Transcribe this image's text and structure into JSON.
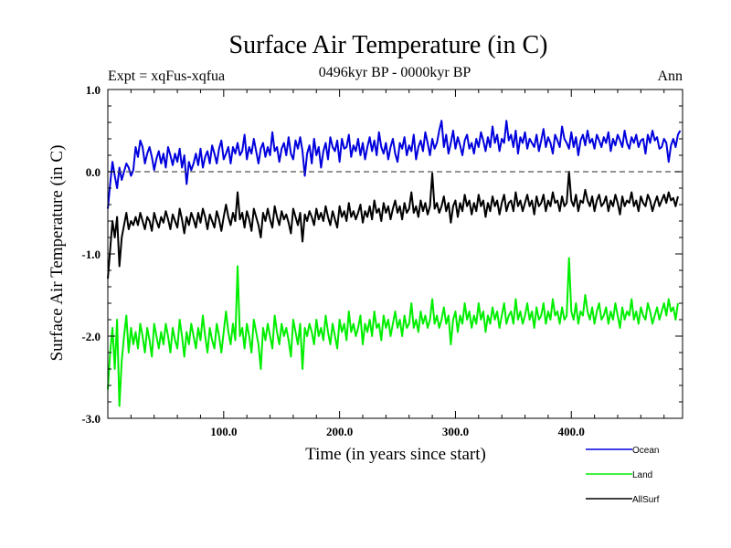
{
  "chart_data": {
    "type": "line",
    "title": "Surface Air Temperature (in C)",
    "subtitle": "0496kyr BP - 0000kyr BP",
    "experiment_label": "Expt = xqFus-xqfua",
    "season_label": "Ann",
    "xlabel": "Time (in years since start)",
    "ylabel": "Surface Air Temperature (in C)",
    "xlim": [
      0,
      496
    ],
    "ylim": [
      -3.0,
      1.0
    ],
    "x_ticks": [
      100,
      200,
      300,
      400
    ],
    "x_tick_labels": [
      "100.0",
      "200.0",
      "300.0",
      "400.0"
    ],
    "y_ticks": [
      1.0,
      0.0,
      -1.0,
      -2.0,
      -3.0
    ],
    "y_tick_labels": [
      "1.0",
      "0.0",
      "-1.0",
      "-2.0",
      "-3.0"
    ],
    "reference_line": 0.0,
    "x_step": 2,
    "series": [
      {
        "name": "Ocean",
        "color": "#0000dd",
        "values": [
          -0.45,
          -0.15,
          0.12,
          -0.05,
          -0.2,
          0.05,
          -0.1,
          0.0,
          0.1,
          0.05,
          -0.05,
          0.02,
          0.3,
          0.18,
          0.38,
          0.3,
          0.1,
          0.22,
          0.3,
          0.18,
          0.02,
          0.16,
          0.25,
          0.1,
          0.22,
          0.05,
          0.3,
          0.2,
          0.08,
          0.22,
          0.12,
          0.28,
          0.05,
          0.2,
          -0.15,
          0.12,
          0.02,
          0.1,
          0.22,
          0.08,
          0.28,
          0.05,
          0.18,
          0.25,
          0.1,
          0.32,
          0.22,
          0.1,
          0.28,
          0.38,
          0.15,
          0.22,
          0.3,
          0.1,
          0.3,
          0.22,
          0.35,
          0.2,
          0.25,
          0.45,
          0.15,
          0.3,
          0.22,
          0.4,
          0.25,
          0.1,
          0.28,
          0.35,
          0.18,
          0.3,
          0.2,
          0.48,
          0.25,
          0.3,
          0.12,
          0.28,
          0.35,
          0.2,
          0.42,
          0.22,
          0.15,
          0.38,
          0.28,
          0.42,
          0.25,
          -0.05,
          0.22,
          0.32,
          0.1,
          0.4,
          0.2,
          0.3,
          0.05,
          0.25,
          0.35,
          0.15,
          0.42,
          0.3,
          0.25,
          0.38,
          0.12,
          0.4,
          0.28,
          0.3,
          0.45,
          0.18,
          0.32,
          0.25,
          0.4,
          0.2,
          0.35,
          0.15,
          0.3,
          0.42,
          0.25,
          0.38,
          0.2,
          0.48,
          0.3,
          0.22,
          0.35,
          0.15,
          0.3,
          0.4,
          0.22,
          0.12,
          0.35,
          0.28,
          0.42,
          0.2,
          0.32,
          0.25,
          0.45,
          0.15,
          0.3,
          0.38,
          0.25,
          0.48,
          0.35,
          0.2,
          0.4,
          0.28,
          0.35,
          0.5,
          0.62,
          0.3,
          0.45,
          0.22,
          0.35,
          0.5,
          0.28,
          0.42,
          0.32,
          0.2,
          0.38,
          0.45,
          0.28,
          0.35,
          0.22,
          0.4,
          0.3,
          0.48,
          0.38,
          0.25,
          0.42,
          0.3,
          0.55,
          0.35,
          0.45,
          0.25,
          0.4,
          0.35,
          0.62,
          0.38,
          0.45,
          0.3,
          0.5,
          0.22,
          0.42,
          0.35,
          0.48,
          0.28,
          0.4,
          0.35,
          0.3,
          0.45,
          0.25,
          0.38,
          0.52,
          0.3,
          0.42,
          0.35,
          0.22,
          0.45,
          0.38,
          0.3,
          0.55,
          0.4,
          0.35,
          0.28,
          0.48,
          0.3,
          0.42,
          0.2,
          0.38,
          0.45,
          0.32,
          0.5,
          0.35,
          0.4,
          0.28,
          0.45,
          0.38,
          0.3,
          0.42,
          0.35,
          0.48,
          0.25,
          0.4,
          0.32,
          0.45,
          0.38,
          0.3,
          0.5,
          0.35,
          0.28,
          0.42,
          0.35,
          0.45,
          0.3,
          0.38,
          0.4,
          0.22,
          0.45,
          0.35,
          0.5,
          0.38,
          0.42,
          0.28,
          0.3,
          0.4,
          0.35,
          0.12,
          0.32,
          0.4,
          0.3,
          0.45,
          0.5
        ]
      },
      {
        "name": "Land",
        "color": "#00ee00",
        "values": [
          -2.65,
          -2.2,
          -1.9,
          -2.4,
          -1.8,
          -2.85,
          -2.3,
          -2.0,
          -1.75,
          -2.2,
          -1.9,
          -2.1,
          -1.95,
          -2.15,
          -1.85,
          -2.0,
          -2.2,
          -1.9,
          -2.05,
          -2.25,
          -1.85,
          -2.0,
          -2.15,
          -1.95,
          -2.1,
          -1.85,
          -2.0,
          -2.2,
          -1.9,
          -2.05,
          -2.15,
          -1.8,
          -2.0,
          -2.25,
          -1.95,
          -2.1,
          -1.85,
          -2.0,
          -2.15,
          -1.9,
          -2.05,
          -1.75,
          -2.0,
          -2.2,
          -1.9,
          -2.05,
          -2.15,
          -1.85,
          -2.0,
          -2.2,
          -1.95,
          -1.7,
          -1.95,
          -2.1,
          -1.85,
          -2.05,
          -1.15,
          -2.0,
          -1.9,
          -2.15,
          -1.85,
          -2.0,
          -2.2,
          -1.8,
          -1.95,
          -2.1,
          -2.4,
          -1.9,
          -2.05,
          -1.85,
          -2.0,
          -2.15,
          -1.75,
          -1.95,
          -2.1,
          -1.85,
          -2.0,
          -1.9,
          -2.05,
          -2.25,
          -1.8,
          -1.95,
          -2.1,
          -1.85,
          -2.4,
          -1.9,
          -2.0,
          -1.85,
          -1.95,
          -2.1,
          -1.8,
          -2.0,
          -1.9,
          -2.05,
          -1.75,
          -1.95,
          -2.1,
          -1.85,
          -2.0,
          -2.15,
          -1.8,
          -1.95,
          -1.85,
          -2.05,
          -1.7,
          -1.95,
          -1.85,
          -2.0,
          -1.9,
          -1.75,
          -2.1,
          -1.85,
          -1.95,
          -1.8,
          -2.0,
          -1.7,
          -1.9,
          -1.85,
          -2.05,
          -1.75,
          -1.9,
          -1.8,
          -2.0,
          -1.85,
          -1.7,
          -1.9,
          -1.8,
          -2.0,
          -1.75,
          -1.9,
          -1.85,
          -1.6,
          -1.9,
          -1.8,
          -1.95,
          -1.7,
          -1.85,
          -1.75,
          -1.9,
          -1.8,
          -1.55,
          -1.85,
          -1.75,
          -1.9,
          -1.8,
          -1.65,
          -1.85,
          -1.75,
          -2.1,
          -1.8,
          -1.7,
          -1.95,
          -1.75,
          -1.85,
          -1.6,
          -1.8,
          -1.7,
          -1.9,
          -1.75,
          -1.85,
          -1.6,
          -1.8,
          -1.7,
          -1.95,
          -1.75,
          -1.85,
          -1.65,
          -1.8,
          -1.7,
          -1.9,
          -1.75,
          -1.6,
          -1.85,
          -1.75,
          -1.7,
          -1.85,
          -1.55,
          -1.8,
          -1.7,
          -1.85,
          -1.75,
          -1.6,
          -1.8,
          -1.7,
          -1.9,
          -1.65,
          -1.8,
          -1.75,
          -1.6,
          -1.85,
          -1.7,
          -1.8,
          -1.55,
          -1.75,
          -1.7,
          -1.85,
          -1.65,
          -1.8,
          -1.75,
          -1.05,
          -1.7,
          -1.8,
          -1.6,
          -1.85,
          -1.7,
          -1.75,
          -1.5,
          -1.7,
          -1.8,
          -1.65,
          -1.85,
          -1.7,
          -1.6,
          -1.8,
          -1.75,
          -1.65,
          -1.85,
          -1.7,
          -1.8,
          -1.6,
          -1.75,
          -1.9,
          -1.65,
          -1.8,
          -1.7,
          -1.75,
          -1.55,
          -1.8,
          -1.7,
          -1.85,
          -1.65,
          -1.75,
          -1.8,
          -1.6,
          -1.7,
          -1.85,
          -1.75,
          -1.65,
          -1.8,
          -1.7,
          -1.6,
          -1.75,
          -1.55,
          -1.7,
          -1.65,
          -1.8,
          -1.6
        ]
      },
      {
        "name": "AllSurf",
        "color": "#000000",
        "values": [
          -1.3,
          -0.95,
          -0.6,
          -0.8,
          -0.55,
          -1.15,
          -0.8,
          -0.65,
          -0.5,
          -0.7,
          -0.6,
          -0.65,
          -0.55,
          -0.65,
          -0.5,
          -0.6,
          -0.7,
          -0.55,
          -0.6,
          -0.72,
          -0.5,
          -0.6,
          -0.68,
          -0.55,
          -0.62,
          -0.48,
          -0.58,
          -0.7,
          -0.52,
          -0.6,
          -0.68,
          -0.45,
          -0.58,
          -0.75,
          -0.55,
          -0.65,
          -0.5,
          -0.58,
          -0.68,
          -0.5,
          -0.62,
          -0.45,
          -0.55,
          -0.7,
          -0.52,
          -0.6,
          -0.68,
          -0.48,
          -0.58,
          -0.72,
          -0.55,
          -0.4,
          -0.55,
          -0.65,
          -0.5,
          -0.6,
          -0.25,
          -0.58,
          -0.5,
          -0.68,
          -0.48,
          -0.58,
          -0.72,
          -0.45,
          -0.55,
          -0.65,
          -0.8,
          -0.5,
          -0.6,
          -0.45,
          -0.58,
          -0.68,
          -0.42,
          -0.55,
          -0.65,
          -0.48,
          -0.58,
          -0.52,
          -0.62,
          -0.75,
          -0.45,
          -0.55,
          -0.65,
          -0.5,
          -0.85,
          -0.52,
          -0.6,
          -0.48,
          -0.55,
          -0.65,
          -0.45,
          -0.58,
          -0.5,
          -0.6,
          -0.42,
          -0.55,
          -0.65,
          -0.48,
          -0.58,
          -0.68,
          -0.42,
          -0.55,
          -0.48,
          -0.6,
          -0.38,
          -0.55,
          -0.48,
          -0.58,
          -0.5,
          -0.4,
          -0.62,
          -0.48,
          -0.55,
          -0.42,
          -0.58,
          -0.35,
          -0.5,
          -0.45,
          -0.6,
          -0.38,
          -0.5,
          -0.42,
          -0.58,
          -0.45,
          -0.35,
          -0.5,
          -0.42,
          -0.58,
          -0.38,
          -0.5,
          -0.45,
          -0.25,
          -0.5,
          -0.42,
          -0.55,
          -0.35,
          -0.48,
          -0.38,
          -0.52,
          -0.42,
          -0.02,
          -0.45,
          -0.38,
          -0.5,
          -0.42,
          -0.3,
          -0.48,
          -0.38,
          -0.62,
          -0.42,
          -0.35,
          -0.55,
          -0.38,
          -0.48,
          -0.28,
          -0.42,
          -0.35,
          -0.52,
          -0.38,
          -0.48,
          -0.28,
          -0.42,
          -0.35,
          -0.55,
          -0.38,
          -0.48,
          -0.3,
          -0.42,
          -0.35,
          -0.52,
          -0.38,
          -0.28,
          -0.48,
          -0.38,
          -0.35,
          -0.48,
          -0.25,
          -0.42,
          -0.35,
          -0.48,
          -0.38,
          -0.28,
          -0.42,
          -0.35,
          -0.52,
          -0.3,
          -0.42,
          -0.38,
          -0.28,
          -0.48,
          -0.35,
          -0.42,
          -0.25,
          -0.38,
          -0.35,
          -0.48,
          -0.3,
          -0.42,
          -0.38,
          0.0,
          -0.35,
          -0.42,
          -0.28,
          -0.48,
          -0.35,
          -0.38,
          -0.22,
          -0.35,
          -0.42,
          -0.3,
          -0.48,
          -0.35,
          -0.28,
          -0.42,
          -0.38,
          -0.3,
          -0.48,
          -0.35,
          -0.42,
          -0.28,
          -0.38,
          -0.52,
          -0.3,
          -0.42,
          -0.35,
          -0.38,
          -0.25,
          -0.42,
          -0.35,
          -0.48,
          -0.3,
          -0.38,
          -0.42,
          -0.28,
          -0.35,
          -0.48,
          -0.38,
          -0.3,
          -0.42,
          -0.35,
          -0.28,
          -0.38,
          -0.25,
          -0.35,
          -0.32,
          -0.42,
          -0.3
        ]
      }
    ]
  }
}
